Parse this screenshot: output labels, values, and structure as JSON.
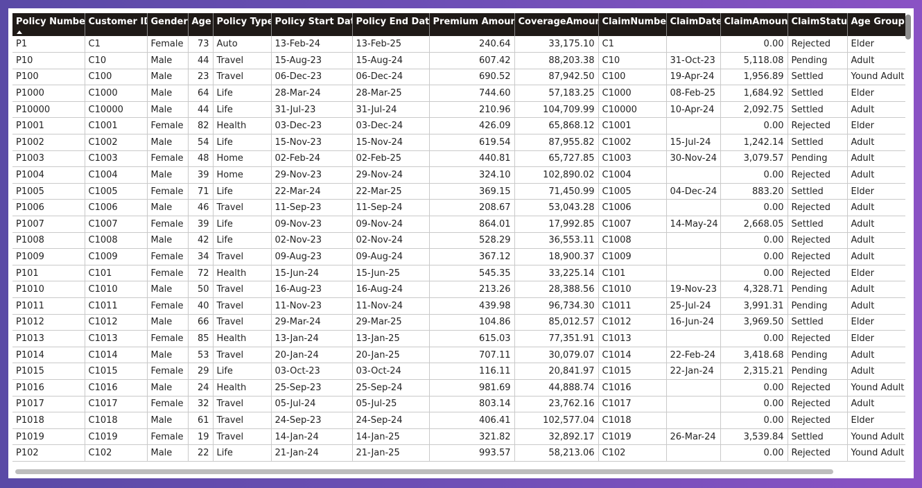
{
  "table": {
    "columns": [
      "Policy Number",
      "Customer ID",
      "Gender",
      "Age",
      "Policy Type",
      "Policy Start Date",
      "Policy End Date",
      "Premium Amount",
      "CoverageAmount",
      "ClaimNumber",
      "ClaimDate",
      "ClaimAmount",
      "ClaimStatus",
      "Age Group"
    ],
    "numeric_columns": [
      3,
      7,
      8,
      11
    ],
    "sort_column_index": 0,
    "rows": [
      [
        "P1",
        "C1",
        "Female",
        "73",
        "Auto",
        "13-Feb-24",
        "13-Feb-25",
        "240.64",
        "33,175.10",
        "C1",
        "",
        "0.00",
        "Rejected",
        "Elder"
      ],
      [
        "P10",
        "C10",
        "Male",
        "44",
        "Travel",
        "15-Aug-23",
        "15-Aug-24",
        "607.42",
        "88,203.38",
        "C10",
        "31-Oct-23",
        "5,118.08",
        "Pending",
        "Adult"
      ],
      [
        "P100",
        "C100",
        "Male",
        "23",
        "Travel",
        "06-Dec-23",
        "06-Dec-24",
        "690.52",
        "87,942.50",
        "C100",
        "19-Apr-24",
        "1,956.89",
        "Settled",
        "Yound Adult"
      ],
      [
        "P1000",
        "C1000",
        "Male",
        "64",
        "Life",
        "28-Mar-24",
        "28-Mar-25",
        "744.60",
        "57,183.25",
        "C1000",
        "08-Feb-25",
        "1,684.92",
        "Settled",
        "Elder"
      ],
      [
        "P10000",
        "C10000",
        "Male",
        "44",
        "Life",
        "31-Jul-23",
        "31-Jul-24",
        "210.96",
        "104,709.99",
        "C10000",
        "10-Apr-24",
        "2,092.75",
        "Settled",
        "Adult"
      ],
      [
        "P1001",
        "C1001",
        "Female",
        "82",
        "Health",
        "03-Dec-23",
        "03-Dec-24",
        "426.09",
        "65,868.12",
        "C1001",
        "",
        "0.00",
        "Rejected",
        "Elder"
      ],
      [
        "P1002",
        "C1002",
        "Male",
        "54",
        "Life",
        "15-Nov-23",
        "15-Nov-24",
        "619.54",
        "87,955.82",
        "C1002",
        "15-Jul-24",
        "1,242.14",
        "Settled",
        "Adult"
      ],
      [
        "P1003",
        "C1003",
        "Female",
        "48",
        "Home",
        "02-Feb-24",
        "02-Feb-25",
        "440.81",
        "65,727.85",
        "C1003",
        "30-Nov-24",
        "3,079.57",
        "Pending",
        "Adult"
      ],
      [
        "P1004",
        "C1004",
        "Male",
        "39",
        "Home",
        "29-Nov-23",
        "29-Nov-24",
        "324.10",
        "102,890.02",
        "C1004",
        "",
        "0.00",
        "Rejected",
        "Adult"
      ],
      [
        "P1005",
        "C1005",
        "Female",
        "71",
        "Life",
        "22-Mar-24",
        "22-Mar-25",
        "369.15",
        "71,450.99",
        "C1005",
        "04-Dec-24",
        "883.20",
        "Settled",
        "Elder"
      ],
      [
        "P1006",
        "C1006",
        "Male",
        "46",
        "Travel",
        "11-Sep-23",
        "11-Sep-24",
        "208.67",
        "53,043.28",
        "C1006",
        "",
        "0.00",
        "Rejected",
        "Adult"
      ],
      [
        "P1007",
        "C1007",
        "Female",
        "39",
        "Life",
        "09-Nov-23",
        "09-Nov-24",
        "864.01",
        "17,992.85",
        "C1007",
        "14-May-24",
        "2,668.05",
        "Settled",
        "Adult"
      ],
      [
        "P1008",
        "C1008",
        "Male",
        "42",
        "Life",
        "02-Nov-23",
        "02-Nov-24",
        "528.29",
        "36,553.11",
        "C1008",
        "",
        "0.00",
        "Rejected",
        "Adult"
      ],
      [
        "P1009",
        "C1009",
        "Female",
        "34",
        "Travel",
        "09-Aug-23",
        "09-Aug-24",
        "367.12",
        "18,900.37",
        "C1009",
        "",
        "0.00",
        "Rejected",
        "Adult"
      ],
      [
        "P101",
        "C101",
        "Female",
        "72",
        "Health",
        "15-Jun-24",
        "15-Jun-25",
        "545.35",
        "33,225.14",
        "C101",
        "",
        "0.00",
        "Rejected",
        "Elder"
      ],
      [
        "P1010",
        "C1010",
        "Male",
        "50",
        "Travel",
        "16-Aug-23",
        "16-Aug-24",
        "213.26",
        "28,388.56",
        "C1010",
        "19-Nov-23",
        "4,328.71",
        "Pending",
        "Adult"
      ],
      [
        "P1011",
        "C1011",
        "Female",
        "40",
        "Travel",
        "11-Nov-23",
        "11-Nov-24",
        "439.98",
        "96,734.30",
        "C1011",
        "25-Jul-24",
        "3,991.31",
        "Pending",
        "Adult"
      ],
      [
        "P1012",
        "C1012",
        "Male",
        "66",
        "Travel",
        "29-Mar-24",
        "29-Mar-25",
        "104.86",
        "85,012.57",
        "C1012",
        "16-Jun-24",
        "3,969.50",
        "Settled",
        "Elder"
      ],
      [
        "P1013",
        "C1013",
        "Female",
        "85",
        "Health",
        "13-Jan-24",
        "13-Jan-25",
        "615.03",
        "77,351.91",
        "C1013",
        "",
        "0.00",
        "Rejected",
        "Elder"
      ],
      [
        "P1014",
        "C1014",
        "Male",
        "53",
        "Travel",
        "20-Jan-24",
        "20-Jan-25",
        "707.11",
        "30,079.07",
        "C1014",
        "22-Feb-24",
        "3,418.68",
        "Pending",
        "Adult"
      ],
      [
        "P1015",
        "C1015",
        "Female",
        "29",
        "Life",
        "03-Oct-23",
        "03-Oct-24",
        "116.11",
        "20,841.97",
        "C1015",
        "22-Jan-24",
        "2,315.21",
        "Pending",
        "Adult"
      ],
      [
        "P1016",
        "C1016",
        "Male",
        "24",
        "Health",
        "25-Sep-23",
        "25-Sep-24",
        "981.69",
        "44,888.74",
        "C1016",
        "",
        "0.00",
        "Rejected",
        "Yound Adult"
      ],
      [
        "P1017",
        "C1017",
        "Female",
        "32",
        "Travel",
        "05-Jul-24",
        "05-Jul-25",
        "803.14",
        "23,762.16",
        "C1017",
        "",
        "0.00",
        "Rejected",
        "Adult"
      ],
      [
        "P1018",
        "C1018",
        "Male",
        "61",
        "Travel",
        "24-Sep-23",
        "24-Sep-24",
        "406.41",
        "102,577.04",
        "C1018",
        "",
        "0.00",
        "Rejected",
        "Elder"
      ],
      [
        "P1019",
        "C1019",
        "Female",
        "19",
        "Travel",
        "14-Jan-24",
        "14-Jan-25",
        "321.82",
        "32,892.17",
        "C1019",
        "26-Mar-24",
        "3,539.84",
        "Settled",
        "Yound Adult"
      ],
      [
        "P102",
        "C102",
        "Male",
        "22",
        "Life",
        "21-Jan-24",
        "21-Jan-25",
        "993.57",
        "58,213.06",
        "C102",
        "",
        "0.00",
        "Rejected",
        "Yound Adult"
      ]
    ]
  },
  "colors": {
    "header_bg": "#1f1a17",
    "header_text": "#ffffff",
    "grid_line": "#c9c9c9",
    "background": "#6e4fb6"
  }
}
